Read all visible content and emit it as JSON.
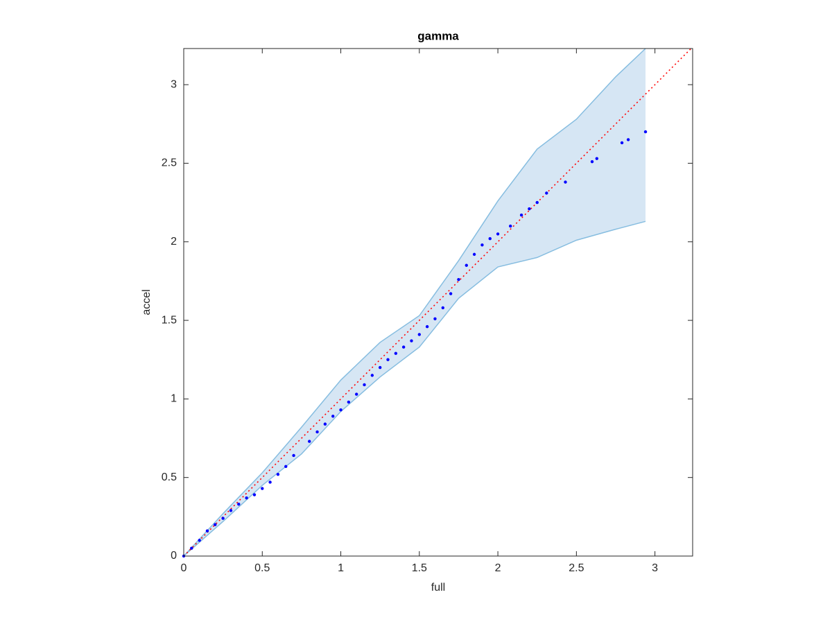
{
  "chart_data": {
    "type": "scatter",
    "title": "gamma",
    "x_label": "full",
    "y_label": "accel",
    "xlim": [
      0,
      3.24
    ],
    "ylim": [
      0,
      3.23
    ],
    "xticks": [
      0,
      0.5,
      1,
      1.5,
      2,
      2.5,
      3
    ],
    "yticks": [
      0,
      0.5,
      1,
      1.5,
      2,
      2.5,
      3
    ],
    "band": {
      "color": "#d6e6f4",
      "edge_color": "#86bde0",
      "x": [
        0,
        0.25,
        0.5,
        0.75,
        1.0,
        1.25,
        1.5,
        1.75,
        2.0,
        2.25,
        2.5,
        2.75,
        2.94
      ],
      "upper": [
        0,
        0.27,
        0.53,
        0.82,
        1.12,
        1.36,
        1.53,
        1.88,
        2.26,
        2.59,
        2.78,
        3.05,
        3.23
      ],
      "lower": [
        0,
        0.22,
        0.45,
        0.65,
        0.92,
        1.14,
        1.33,
        1.64,
        1.84,
        1.9,
        2.01,
        2.08,
        2.13
      ]
    },
    "reference": {
      "color": "#ff0000",
      "style": "dotted",
      "x": [
        0,
        3.23
      ],
      "values": [
        0,
        3.23
      ]
    },
    "series": [
      {
        "color": "#0000ff",
        "x": [
          0,
          0.05,
          0.1,
          0.15,
          0.2,
          0.25,
          0.3,
          0.35,
          0.4,
          0.45,
          0.5,
          0.55,
          0.6,
          0.65,
          0.7,
          0.8,
          0.85,
          0.9,
          0.95,
          1.0,
          1.05,
          1.1,
          1.15,
          1.2,
          1.25,
          1.3,
          1.35,
          1.4,
          1.45,
          1.5,
          1.55,
          1.6,
          1.65,
          1.7,
          1.75,
          1.8,
          1.85,
          1.9,
          1.95,
          2.0,
          2.08,
          2.15,
          2.2,
          2.25,
          2.31,
          2.43,
          2.6,
          2.63,
          2.79,
          2.83,
          2.94
        ],
        "values": [
          0,
          0.05,
          0.1,
          0.16,
          0.2,
          0.24,
          0.29,
          0.33,
          0.37,
          0.39,
          0.43,
          0.47,
          0.52,
          0.57,
          0.64,
          0.73,
          0.79,
          0.84,
          0.89,
          0.93,
          0.98,
          1.03,
          1.09,
          1.15,
          1.2,
          1.25,
          1.29,
          1.33,
          1.37,
          1.41,
          1.46,
          1.51,
          1.58,
          1.67,
          1.76,
          1.85,
          1.92,
          1.98,
          2.02,
          2.05,
          2.1,
          2.17,
          2.21,
          2.25,
          2.31,
          2.38,
          2.51,
          2.53,
          2.63,
          2.65,
          2.7
        ]
      }
    ]
  }
}
